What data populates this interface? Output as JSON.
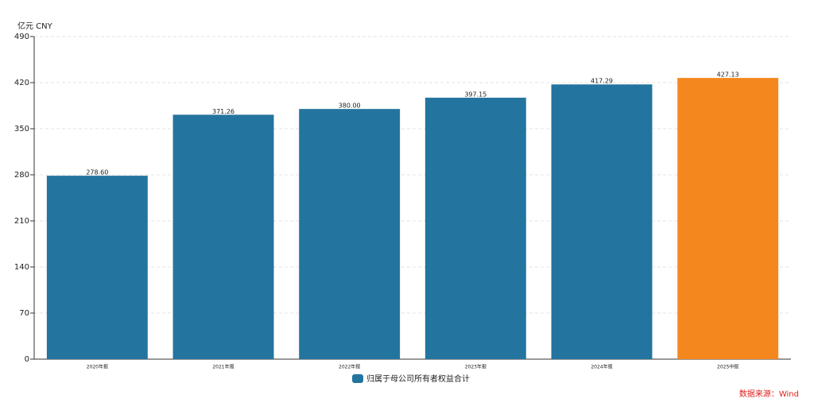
{
  "chart_data": {
    "type": "bar",
    "y_axis_label": "亿元  CNY",
    "categories": [
      "2020年报",
      "2021年报",
      "2022年报",
      "2023年报",
      "2024年报",
      "2025中报"
    ],
    "series": [
      {
        "name": "归属于母公司所有者权益合计",
        "color": "#23759f",
        "values": [
          278.6,
          371.26,
          380.0,
          397.15,
          417.29,
          427.13
        ],
        "value_labels": [
          "278.60",
          "371.26",
          "380.00",
          "397.15",
          "417.29",
          "427.13"
        ],
        "bar_colors": [
          "#23759f",
          "#23759f",
          "#23759f",
          "#23759f",
          "#23759f",
          "#f5871f"
        ]
      }
    ],
    "ylim": [
      0,
      490
    ],
    "yticks": [
      0,
      70,
      140,
      210,
      280,
      350,
      420,
      490
    ],
    "grid": true,
    "source": "数据来源：Wind"
  }
}
